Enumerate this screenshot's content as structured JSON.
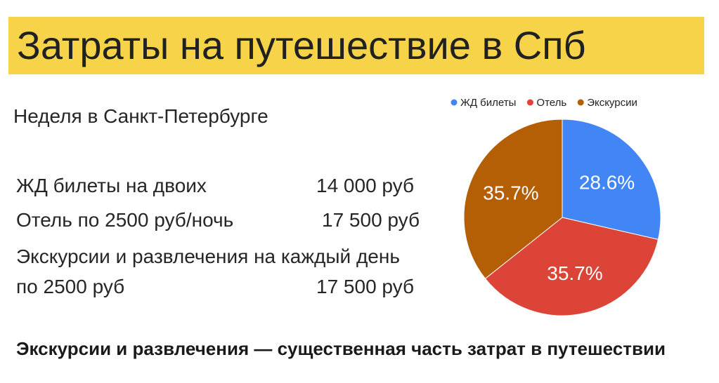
{
  "header": {
    "title": "Затраты на путешествие в Спб",
    "bar_color": "#f6d349"
  },
  "intro": {
    "subtitle": "Неделя в Санкт-Петербурге"
  },
  "expenses": [
    {
      "label": "ЖД билеты на двоих",
      "amount": "14 000 руб"
    },
    {
      "label": "Отель по 2500 руб/ночь",
      "amount": "17 500 руб"
    },
    {
      "label_line1": "Экскурсии и развлечения на каждый день",
      "label_line2": "по 2500 руб",
      "amount": "17 500 руб"
    }
  ],
  "conclusion": "Экскурсии и развлечения — существенная часть затрат в путешествии",
  "chart_data": {
    "type": "pie",
    "legend_position": "top",
    "slices": [
      {
        "label": "ЖД билеты",
        "value": 28.6,
        "display": "28.6%",
        "color": "#4285f4"
      },
      {
        "label": "Отель",
        "value": 35.7,
        "display": "35.7%",
        "color": "#db4437"
      },
      {
        "label": "Экскурсии",
        "value": 35.7,
        "display": "35.7%",
        "color": "#b45f06"
      }
    ]
  }
}
